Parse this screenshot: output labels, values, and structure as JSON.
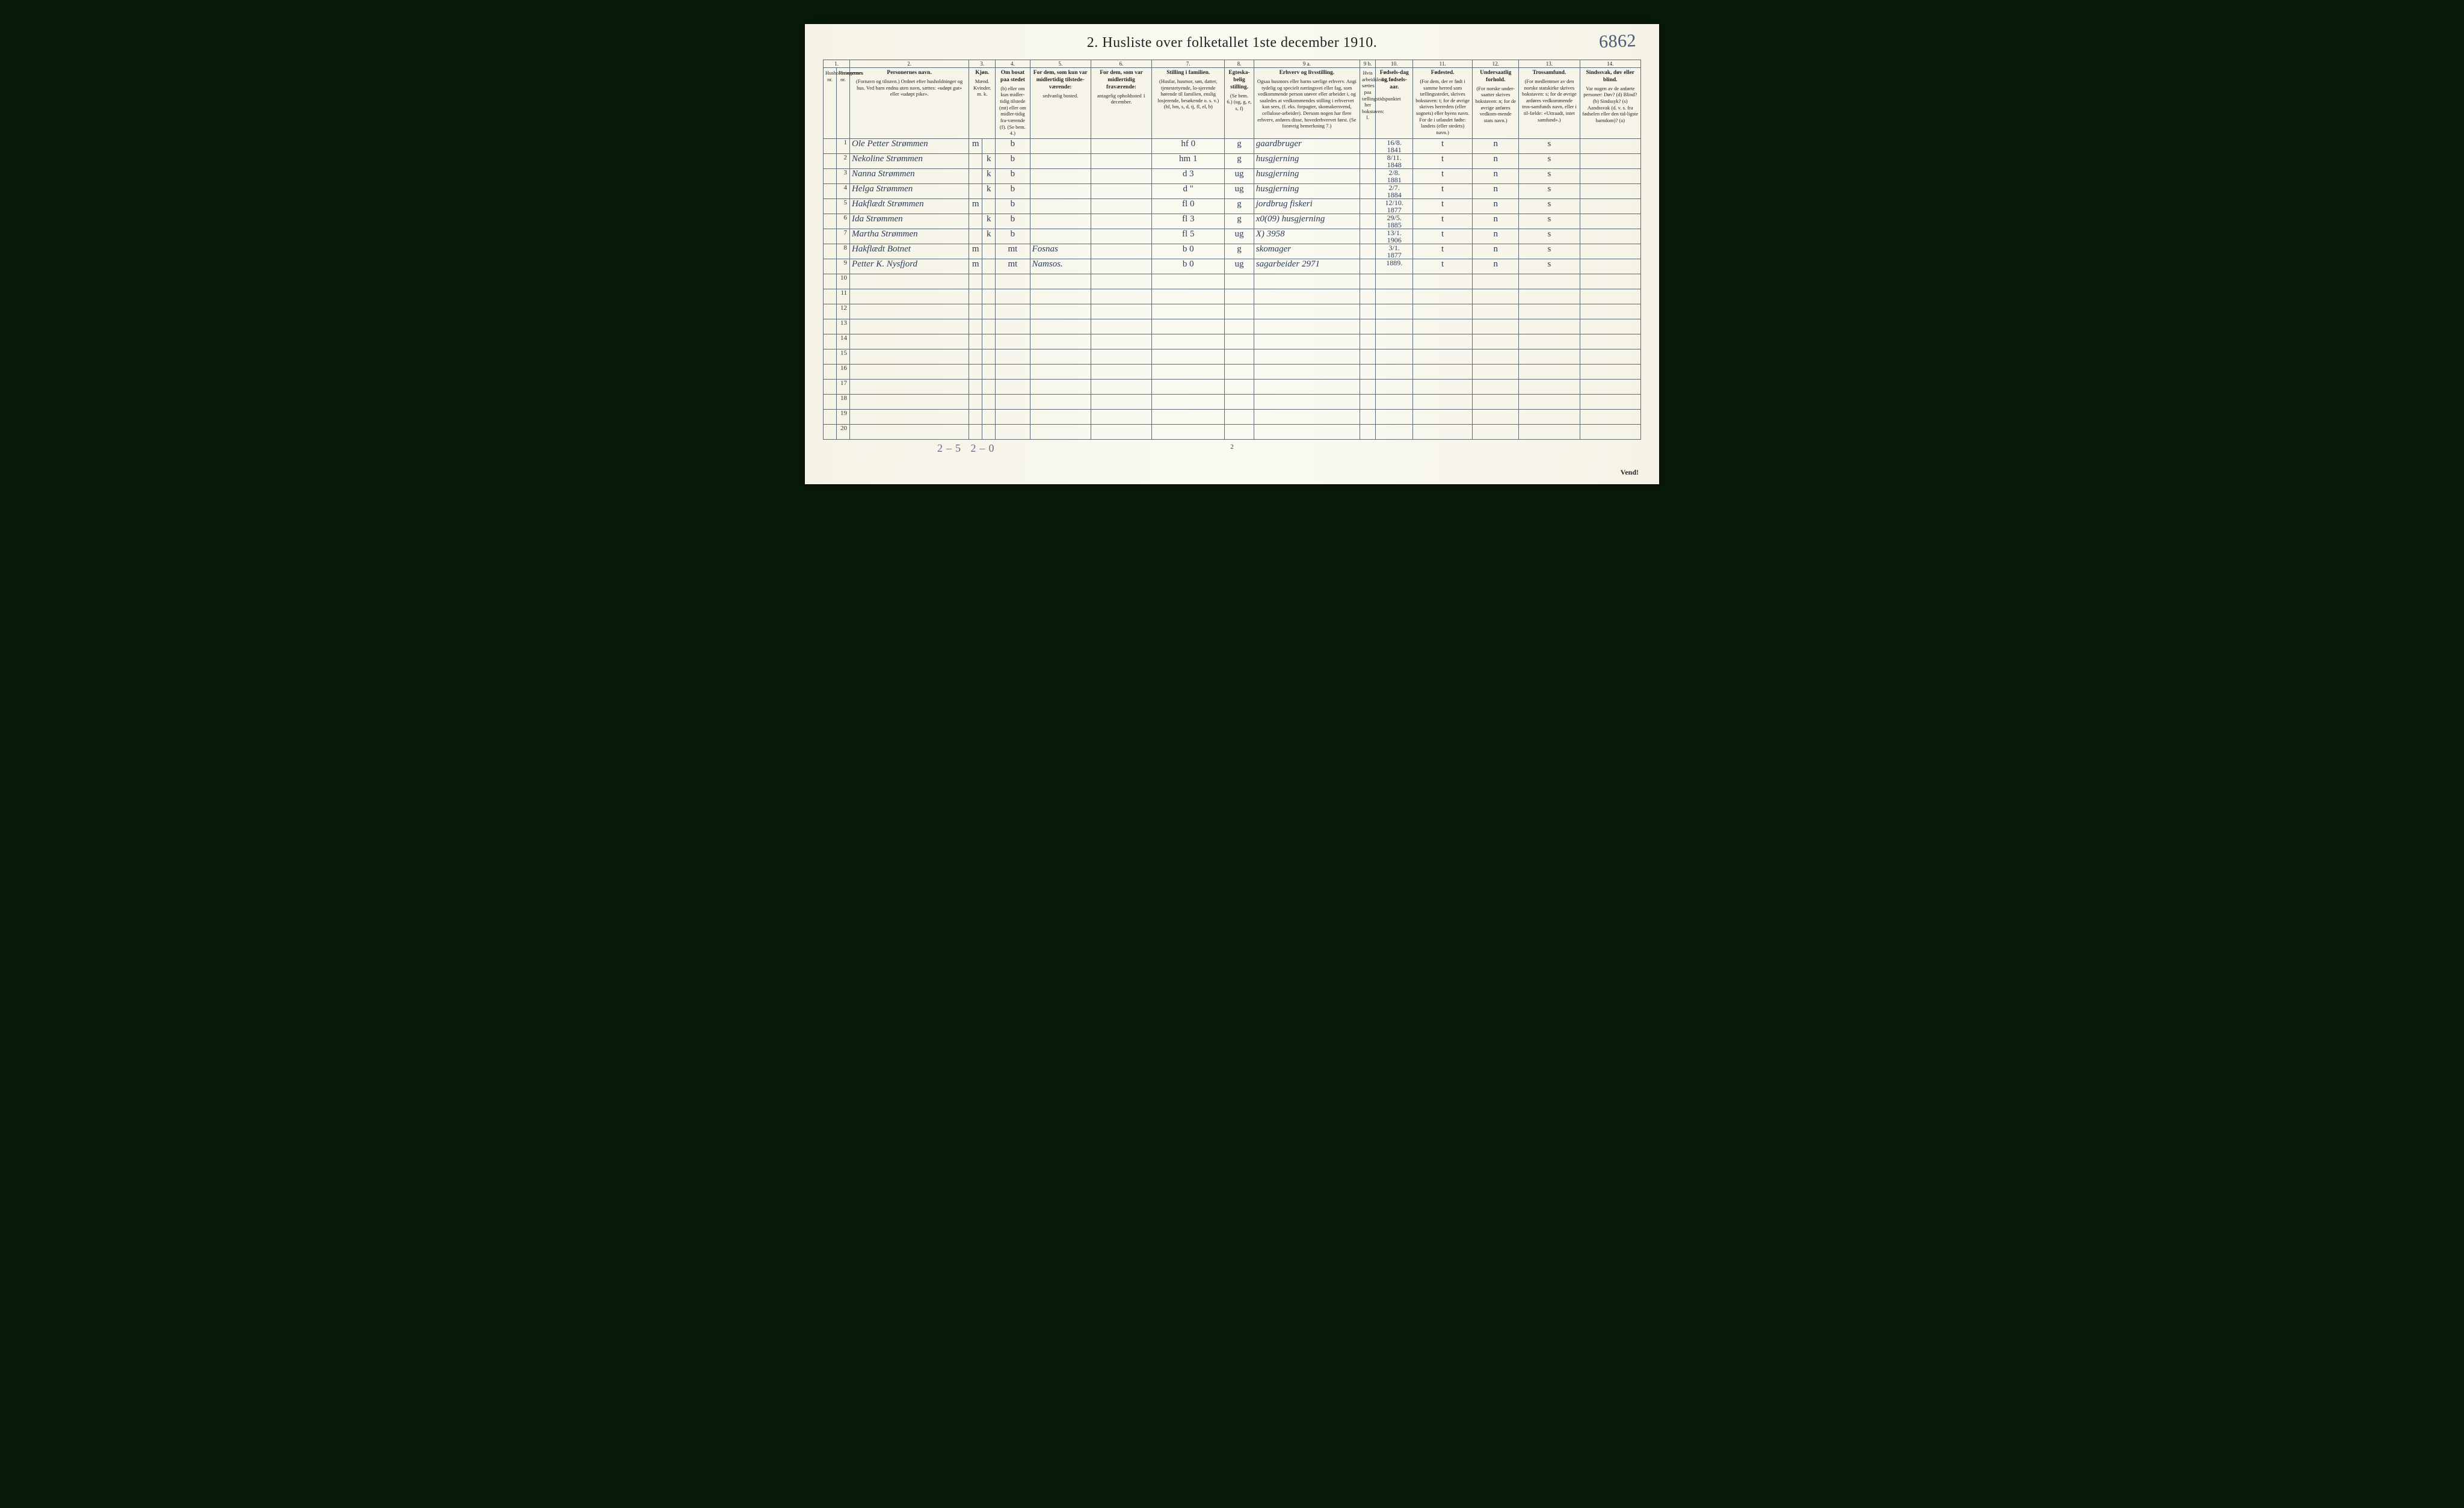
{
  "title": "2.   Husliste over folketallet 1ste december 1910.",
  "page_id_handwritten": "6862",
  "page_number_bottom": "2",
  "turn_text": "Vend!",
  "footer_handwritten": "2–5   2–0",
  "colors": {
    "page_bg": "#faf9f0",
    "border": "#5a6a70",
    "ink": "#2b3b5a",
    "print": "#222222"
  },
  "column_numbers": [
    "1.",
    "2.",
    "3.",
    "4.",
    "5.",
    "6.",
    "7.",
    "8.",
    "9 a.",
    "9 b.",
    "10.",
    "11.",
    "12.",
    "13.",
    "14."
  ],
  "headers": {
    "c1a": "Husholdningernes nr.",
    "c1b": "Personernes nr.",
    "c2_title": "Personernes navn.",
    "c2_body": "(Fornavn og tilnavn.)\nOrdnet efter husholdninger og hus.\nVed barn endnu uten navn, sættes: «udøpt gut»\neller «udøpt pike».",
    "c3_title": "Kjøn.",
    "c3_sub": "Mænd.  Kvinder.\nm.   k.",
    "c4_title": "Om bosat paa stedet",
    "c4_body": "(b) eller om kun midler-tidig tilstede (mt) eller om midler-tidig fra-værende (f).\n(Se bem. 4.)",
    "c5_title": "For dem, som kun var midlertidig tilstede-værende:",
    "c5_body": "sedvanlig bosted.",
    "c6_title": "For dem, som var midlertidig fraværende:",
    "c6_body": "antagelig opholdssted 1 december.",
    "c7_title": "Stilling i familien.",
    "c7_body": "(Husfar, husmor, søn, datter, tjenestetyende, lo-sjerende hørende til familien, enslig losjerende, besøkende o. s. v.)\n(hf, hm, s, d, tj, fl, el, b)",
    "c8_title": "Egteska-belig stilling.",
    "c8_body": "(Se bem. 6.)\n(ug, g, e, s, f)",
    "c9a_title": "Erhverv og livsstilling.",
    "c9a_body": "Ogsaa husmors eller barns særlige erhverv. Angi tydelig og specielt næringsvei eller fag, som vedkommende person utøver eller arbeider i, og saaledes at vedkommendes stilling i erhvervet kan sees, (f. eks. forpagter, skomakersvend, cellulose-arbeider). Dersom nogen har flere erhverv, anføres disse, hovederhvervet først.\n(Se forøvrig bemerkning 7.)",
    "c9b_body": "Hvis arbeidsledig, sættes paa tællingstidspunktet her bokstaven: l.",
    "c10_title": "Fødsels-dag og fødsels-aar.",
    "c11_title": "Fødested.",
    "c11_body": "(For dem, der er født i samme herred som tællingsstedet, skrives bokstaven: t; for de øvrige skrives herredets (eller sognets) eller byens navn. For de i utlandet fødte: landets (eller stedets) navn.)",
    "c12_title": "Undersaatlig forhold.",
    "c12_body": "(For norske under-saatter skrives bokstaven: n; for de øvrige anføres vedkom-mende stats navn.)",
    "c13_title": "Trossamfund.",
    "c13_body": "(For medlemmer av den norske statskirke skrives bokstaven: s; for de øvrige anføres vedkommende tros-samfunds navn, eller i til-fælde: «Uttraadt, intet samfund».)",
    "c14_title": "Sindssvak, døv eller blind.",
    "c14_body": "Var nogen av de anførte personer:\nDøv?    (d)\nBlind?  (b)\nSindssyk? (s)\nAandssvak (d. v. s. fra fødselen eller den tid-ligste barndom)? (a)"
  },
  "rows": [
    {
      "n": "1",
      "name": "Ole Petter Strømmen",
      "sex": "m",
      "res": "b",
      "away": "",
      "absent": "",
      "fam": "hf     0",
      "mar": "g",
      "occ": "gaardbruger",
      "birth": "16/8.\n1841",
      "born": "t",
      "nat": "n",
      "rel": "s"
    },
    {
      "n": "2",
      "name": "Nekoline Strømmen",
      "sex": "k",
      "res": "b",
      "away": "",
      "absent": "",
      "fam": "hm    1",
      "mar": "g",
      "occ": "husgjerning",
      "birth": "8/11.\n1848",
      "born": "t",
      "nat": "n",
      "rel": "s"
    },
    {
      "n": "3",
      "name": "Nanna Strømmen",
      "sex": "k",
      "res": "b",
      "away": "",
      "absent": "",
      "fam": "d      3",
      "mar": "ug",
      "occ": "husgjerning",
      "birth": "2/8.\n1881",
      "born": "t",
      "nat": "n",
      "rel": "s"
    },
    {
      "n": "4",
      "name": "Helga Strømmen",
      "sex": "k",
      "res": "b",
      "away": "",
      "absent": "",
      "fam": "d      \"",
      "mar": "ug",
      "occ": "husgjerning",
      "birth": "2/7.\n1884",
      "born": "t",
      "nat": "n",
      "rel": "s"
    },
    {
      "n": "5",
      "name": "Hakflædt Strømmen",
      "sex": "m",
      "res": "b",
      "away": "",
      "absent": "",
      "fam": "fl     0",
      "mar": "g",
      "occ": "jordbrug fiskeri",
      "birth": "12/10.\n1877",
      "born": "t",
      "nat": "n",
      "rel": "s"
    },
    {
      "n": "6",
      "name": "Ida Strømmen",
      "sex": "k",
      "res": "b",
      "away": "",
      "absent": "",
      "fam": "fl     3",
      "mar": "g",
      "occ": "x0(09)  husgjerning",
      "birth": "29/5.\n1885",
      "born": "t",
      "nat": "n",
      "rel": "s"
    },
    {
      "n": "7",
      "name": "Martha Strømmen",
      "sex": "k",
      "res": "b",
      "away": "",
      "absent": "",
      "fam": "fl     5",
      "mar": "ug",
      "occ": "X)                           3958",
      "birth": "13/1.\n1906",
      "born": "t",
      "nat": "n",
      "rel": "s"
    },
    {
      "n": "8",
      "name": "Hakflædt Botnet",
      "sex": "m",
      "res": "mt",
      "away": "Fosnas",
      "absent": "",
      "fam": "b     0",
      "mar": "g",
      "occ": "skomager",
      "birth": "3/1.\n1877",
      "born": "t",
      "nat": "n",
      "rel": "s"
    },
    {
      "n": "9",
      "name": "Petter K. Nysfjord",
      "sex": "m",
      "res": "mt",
      "away": "Namsos.",
      "absent": "",
      "fam": "b     0",
      "mar": "ug",
      "occ": "sagarbeider         2971",
      "birth": "1889.",
      "born": "t",
      "nat": "n",
      "rel": "s"
    },
    {
      "n": "10"
    },
    {
      "n": "11"
    },
    {
      "n": "12"
    },
    {
      "n": "13"
    },
    {
      "n": "14"
    },
    {
      "n": "15"
    },
    {
      "n": "16"
    },
    {
      "n": "17"
    },
    {
      "n": "18"
    },
    {
      "n": "19"
    },
    {
      "n": "20"
    }
  ]
}
